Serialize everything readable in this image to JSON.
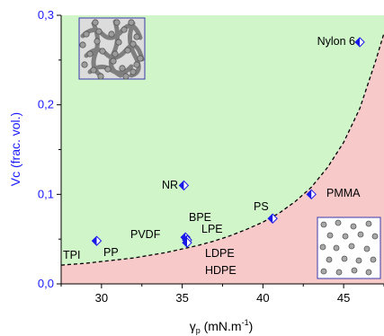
{
  "chart_data": {
    "type": "scatter",
    "xlabel_main": "γ",
    "xlabel_sub": "p",
    "xlabel_rest": " (mN.m",
    "xlabel_sup": "-1",
    "xlabel_close": ")",
    "ylabel": "Vc (frac. vol.)",
    "xlim": [
      27.5,
      47.5
    ],
    "ylim": [
      0,
      0.3
    ],
    "x_ticks": [
      30,
      35,
      40,
      45
    ],
    "x_tick_labels": [
      "30",
      "35",
      "40",
      "45"
    ],
    "y_ticks": [
      0,
      0.1,
      0.2,
      0.3
    ],
    "y_tick_labels": [
      "0,0",
      "0,1",
      "0,2",
      "0,3"
    ],
    "colors": {
      "upper_region": "#cff5c9",
      "lower_region": "#f8c9c9",
      "marker": "#1a1ae6",
      "y_axis_text": "#1a1aff",
      "curve": "#000000"
    },
    "points": [
      {
        "label": "TPI",
        "x": 29.7,
        "y": 0.047
      },
      {
        "label": "PP",
        "x": 29.7,
        "y": 0.047
      },
      {
        "label": "PVDF",
        "x": 35.2,
        "y": 0.052
      },
      {
        "label": "BPE",
        "x": 35.3,
        "y": 0.05
      },
      {
        "label": "LPE",
        "x": 35.3,
        "y": 0.048
      },
      {
        "label": "LDPE",
        "x": 35.3,
        "y": 0.046
      },
      {
        "label": "HDPE",
        "x": 35.3,
        "y": 0.044
      },
      {
        "label": "NR",
        "x": 35.1,
        "y": 0.11
      },
      {
        "label": "PS",
        "x": 40.6,
        "y": 0.073
      },
      {
        "label": "PMMA",
        "x": 43.0,
        "y": 0.1
      },
      {
        "label": "Nylon 6",
        "x": 46.0,
        "y": 0.27
      }
    ],
    "markers": [
      {
        "x": 29.7,
        "y": 0.048
      },
      {
        "x": 35.2,
        "y": 0.052
      },
      {
        "x": 35.3,
        "y": 0.049
      },
      {
        "x": 35.3,
        "y": 0.046
      },
      {
        "x": 35.1,
        "y": 0.11
      },
      {
        "x": 40.6,
        "y": 0.073
      },
      {
        "x": 43.0,
        "y": 0.1
      },
      {
        "x": 46.0,
        "y": 0.27
      }
    ],
    "boundary_curve": {
      "style": "dashed",
      "x": [
        27.5,
        29,
        30,
        31,
        32,
        33,
        34,
        35,
        36,
        37,
        38,
        39,
        40,
        41,
        42,
        43,
        44,
        45,
        46,
        47,
        47.5
      ],
      "y": [
        0.021,
        0.023,
        0.025,
        0.027,
        0.029,
        0.032,
        0.035,
        0.039,
        0.043,
        0.048,
        0.054,
        0.061,
        0.069,
        0.079,
        0.092,
        0.108,
        0.13,
        0.158,
        0.196,
        0.25,
        0.28
      ]
    }
  }
}
